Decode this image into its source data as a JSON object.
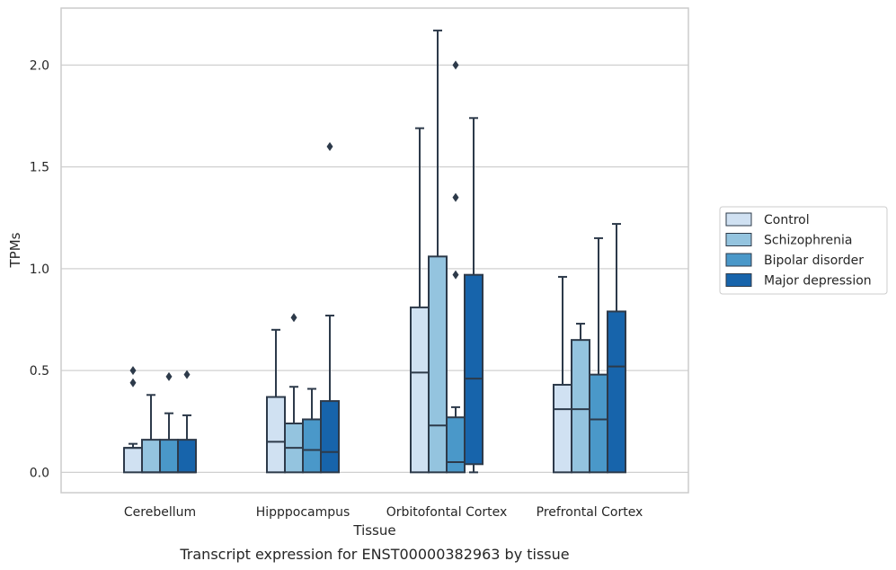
{
  "chart_data": {
    "type": "box",
    "caption": "Transcript expression for ENST00000382963 by tissue",
    "xlabel": "Tissue",
    "ylabel": "TPMs",
    "ylim": [
      -0.1,
      2.28
    ],
    "yticks": [
      0.0,
      0.5,
      1.0,
      1.5,
      2.0
    ],
    "ytick_labels": [
      "0.0",
      "0.5",
      "1.0",
      "1.5",
      "2.0"
    ],
    "grid": "horizontal",
    "legend_position": "right",
    "categories": [
      "Cerebellum",
      "Hipppocampus",
      "Orbitofontal Cortex",
      "Prefrontal Cortex"
    ],
    "series": [
      {
        "name": "Control",
        "color": "#d0e1f2",
        "boxes": [
          {
            "q1": 0.0,
            "median": 0.12,
            "q3": 0.12,
            "whisker_low": 0.0,
            "whisker_high": 0.14,
            "outliers": [
              0.44,
              0.5
            ]
          },
          {
            "q1": 0.0,
            "median": 0.15,
            "q3": 0.37,
            "whisker_low": 0.0,
            "whisker_high": 0.7,
            "outliers": []
          },
          {
            "q1": 0.0,
            "median": 0.49,
            "q3": 0.81,
            "whisker_low": 0.0,
            "whisker_high": 1.69,
            "outliers": []
          },
          {
            "q1": 0.0,
            "median": 0.31,
            "q3": 0.43,
            "whisker_low": 0.0,
            "whisker_high": 0.96,
            "outliers": []
          }
        ]
      },
      {
        "name": "Schizophrenia",
        "color": "#94c4df",
        "boxes": [
          {
            "q1": 0.0,
            "median": 0.0,
            "q3": 0.16,
            "whisker_low": 0.0,
            "whisker_high": 0.38,
            "outliers": []
          },
          {
            "q1": 0.0,
            "median": 0.12,
            "q3": 0.24,
            "whisker_low": 0.0,
            "whisker_high": 0.42,
            "outliers": [
              0.76
            ]
          },
          {
            "q1": 0.0,
            "median": 0.23,
            "q3": 1.06,
            "whisker_low": 0.0,
            "whisker_high": 2.17,
            "outliers": []
          },
          {
            "q1": 0.0,
            "median": 0.31,
            "q3": 0.65,
            "whisker_low": 0.0,
            "whisker_high": 0.73,
            "outliers": []
          }
        ]
      },
      {
        "name": "Bipolar disorder",
        "color": "#4a98c9",
        "boxes": [
          {
            "q1": 0.0,
            "median": 0.0,
            "q3": 0.16,
            "whisker_low": 0.0,
            "whisker_high": 0.29,
            "outliers": [
              0.47
            ]
          },
          {
            "q1": 0.0,
            "median": 0.11,
            "q3": 0.26,
            "whisker_low": 0.0,
            "whisker_high": 0.41,
            "outliers": []
          },
          {
            "q1": 0.0,
            "median": 0.05,
            "q3": 0.27,
            "whisker_low": 0.0,
            "whisker_high": 0.32,
            "outliers": [
              0.97,
              1.35,
              2.0
            ]
          },
          {
            "q1": 0.0,
            "median": 0.26,
            "q3": 0.48,
            "whisker_low": 0.0,
            "whisker_high": 1.15,
            "outliers": []
          }
        ]
      },
      {
        "name": "Major depression",
        "color": "#1764ab",
        "boxes": [
          {
            "q1": 0.0,
            "median": 0.0,
            "q3": 0.16,
            "whisker_low": 0.0,
            "whisker_high": 0.28,
            "outliers": [
              0.48
            ]
          },
          {
            "q1": 0.0,
            "median": 0.1,
            "q3": 0.35,
            "whisker_low": 0.0,
            "whisker_high": 0.77,
            "outliers": [
              1.6
            ]
          },
          {
            "q1": 0.04,
            "median": 0.46,
            "q3": 0.97,
            "whisker_low": 0.0,
            "whisker_high": 1.74,
            "outliers": []
          },
          {
            "q1": 0.0,
            "median": 0.52,
            "q3": 0.79,
            "whisker_low": 0.0,
            "whisker_high": 1.22,
            "outliers": []
          }
        ]
      }
    ]
  }
}
